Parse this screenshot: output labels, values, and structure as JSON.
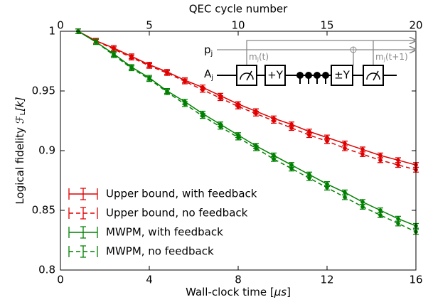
{
  "chart_data": {
    "type": "errorbar-line",
    "xlabel": "Wall-clock time [",
    "xlabel_unit": "μs",
    "xlabel_end": "]",
    "x2label": "QEC cycle number",
    "ylabel": "Logical fidelity ",
    "ylabel_symbol": "ℱ",
    "ylabel_sub": "L",
    "ylabel_arg": "[k]",
    "x": [
      0.8,
      1.6,
      2.4,
      3.2,
      4.0,
      4.8,
      5.6,
      6.4,
      7.2,
      8.0,
      8.8,
      9.6,
      10.4,
      11.2,
      12.0,
      12.8,
      13.6,
      14.4,
      15.2,
      16.0
    ],
    "xlim": [
      0,
      16
    ],
    "xticks": [
      0,
      4,
      8,
      12,
      16
    ],
    "x2lim": [
      0,
      20
    ],
    "x2ticks": [
      0,
      5,
      10,
      15,
      20
    ],
    "ylim": [
      0.8,
      1
    ],
    "yticks": [
      0.8,
      0.85,
      0.9,
      0.95,
      1
    ],
    "legend": "lower left",
    "series": [
      {
        "name": "Upper bound, with feedback",
        "color": "#e00000",
        "linestyle": "solid",
        "error": 0.002,
        "values": [
          1.0,
          0.992,
          0.986,
          0.979,
          0.972,
          0.966,
          0.959,
          0.953,
          0.946,
          0.939,
          0.933,
          0.927,
          0.922,
          0.916,
          0.911,
          0.906,
          0.901,
          0.896,
          0.892,
          0.888
        ]
      },
      {
        "name": "Upper bound, no feedback",
        "color": "#e00000",
        "linestyle": "dashed",
        "error": 0.002,
        "values": [
          1.0,
          0.992,
          0.985,
          0.978,
          0.971,
          0.965,
          0.958,
          0.951,
          0.944,
          0.937,
          0.931,
          0.925,
          0.919,
          0.913,
          0.908,
          0.902,
          0.897,
          0.892,
          0.888,
          0.884
        ]
      },
      {
        "name": "MWPM, with feedback",
        "color": "#008000",
        "linestyle": "solid",
        "error": 0.002,
        "values": [
          1.0,
          0.991,
          0.981,
          0.97,
          0.961,
          0.95,
          0.941,
          0.931,
          0.922,
          0.913,
          0.904,
          0.896,
          0.888,
          0.88,
          0.872,
          0.865,
          0.857,
          0.85,
          0.843,
          0.837
        ]
      },
      {
        "name": "MWPM, no feedback",
        "color": "#008000",
        "linestyle": "dashed",
        "error": 0.002,
        "values": [
          1.0,
          0.991,
          0.98,
          0.969,
          0.96,
          0.949,
          0.939,
          0.929,
          0.92,
          0.911,
          0.902,
          0.893,
          0.885,
          0.877,
          0.869,
          0.861,
          0.853,
          0.846,
          0.839,
          0.832
        ]
      }
    ],
    "inset": {
      "rows": [
        {
          "label": "p",
          "sub": "j"
        },
        {
          "label": "A",
          "sub": "j"
        }
      ],
      "measurements": [
        {
          "label": "m",
          "sub": "j",
          "arg": "(t)"
        },
        {
          "label": "m",
          "sub": "j",
          "arg": "(t+1)"
        }
      ],
      "gates": [
        "+Y",
        "±Y"
      ]
    }
  }
}
